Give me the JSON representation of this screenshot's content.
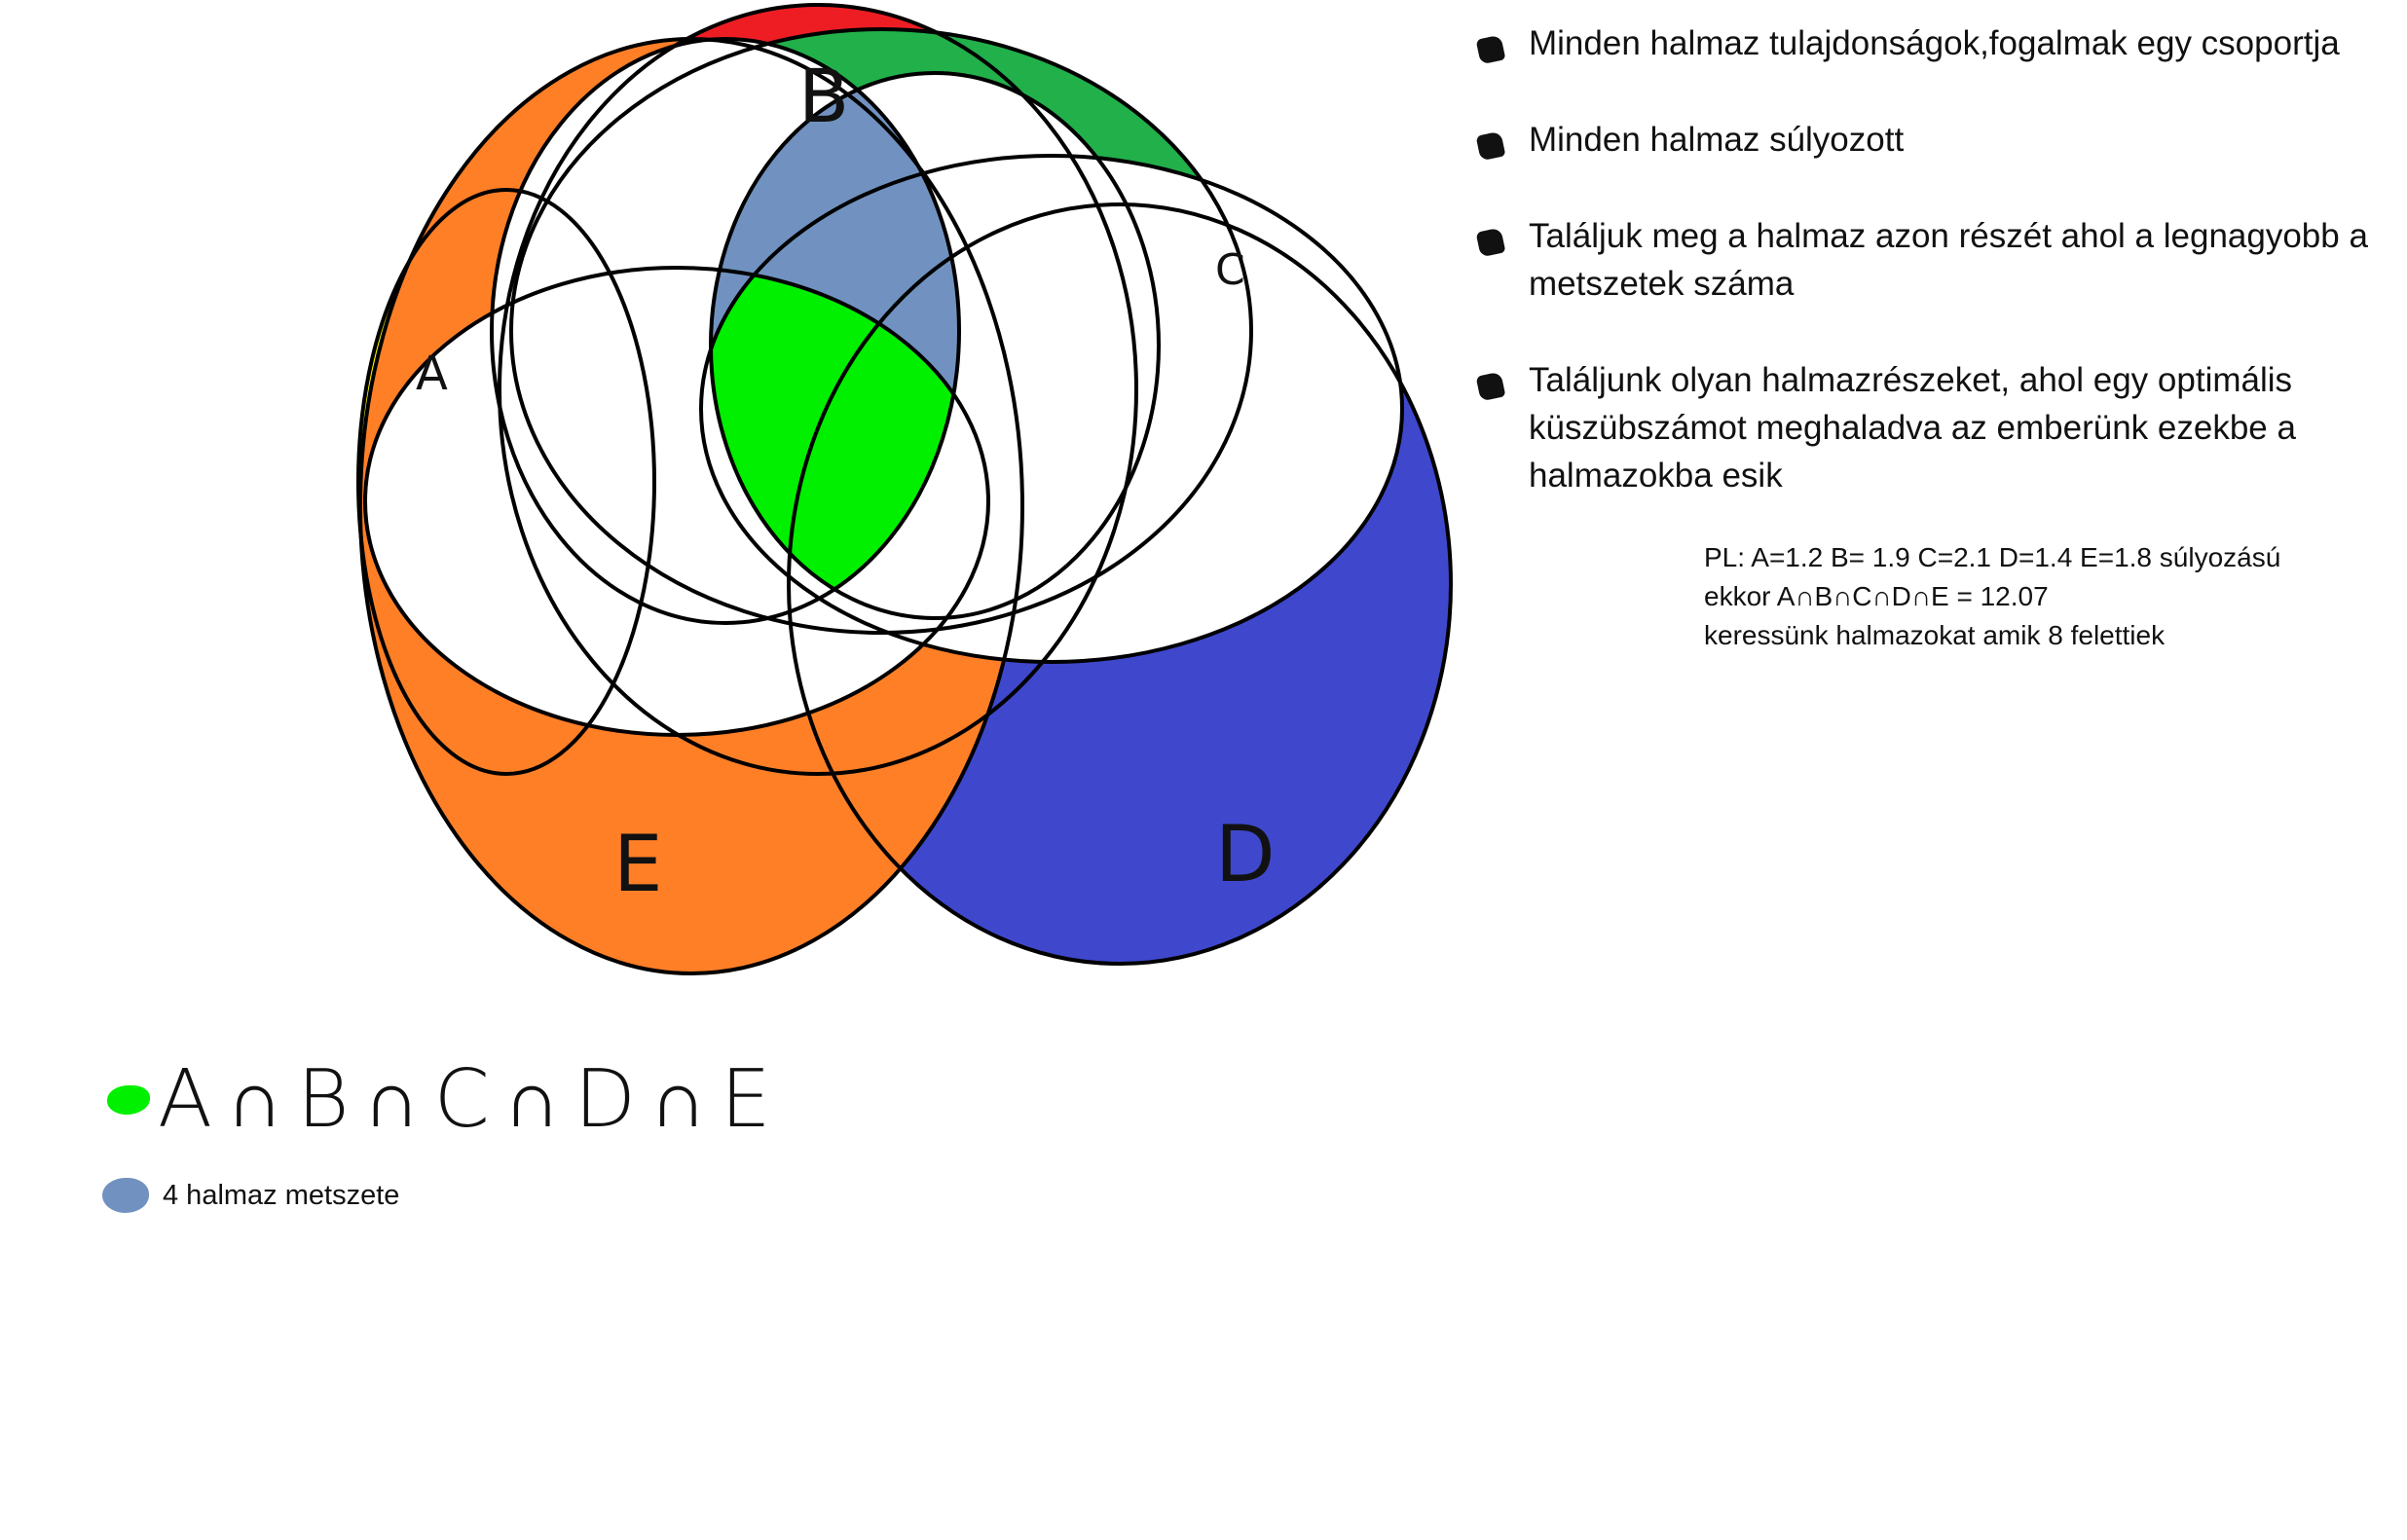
{
  "sets": [
    {
      "label": "A",
      "color": "#ffff00"
    },
    {
      "label": "B",
      "color": "#ee1d24"
    },
    {
      "label": "C",
      "color": "#22b04b"
    },
    {
      "label": "D",
      "color": "#3f48cc"
    },
    {
      "label": "E",
      "color": "#ff7f27"
    }
  ],
  "colors": {
    "four_set_intersection": "#7192c0",
    "five_set_intersection": "#00f000",
    "outline": "#000000"
  },
  "bullets": [
    "Minden halmaz tulajdonságok,fogalmak egy csoportja",
    "Minden halmaz súlyozott",
    "Találjuk meg a halmaz azon részét ahol a legnagyobb a metszetek száma",
    "Találjunk olyan halmazrészeket, ahol egy optimális küszübszámot meghaladva az emberünk ezekbe a halmazokba esik"
  ],
  "example": {
    "line1": "PL: A=1.2 B= 1.9 C=2.1 D=1.4 E=1.8 súlyozású",
    "line2": "ekkor A∩B∩C∩D∩E = 12.07",
    "line3": "keressünk halmazokat amik 8 felettiek"
  },
  "legend": {
    "green_formula": "A∩B∩C∩D∩E",
    "blue_text": "4 halmaz metszete"
  }
}
